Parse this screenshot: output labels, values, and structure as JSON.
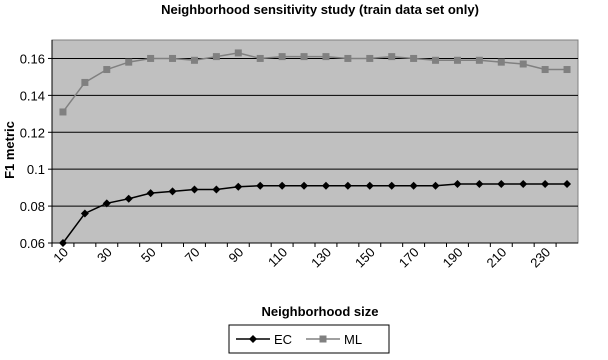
{
  "chart_data": {
    "type": "line",
    "title": "Neighborhood sensitivity study (train data set only)",
    "x_label": "Neighborhood size",
    "y_label": "F1 metric",
    "categories": [
      "10",
      null,
      "30",
      null,
      "50",
      null,
      "70",
      null,
      "90",
      null,
      "110",
      null,
      "130",
      null,
      "150",
      null,
      "170",
      null,
      "190",
      null,
      "210",
      null,
      "230",
      null
    ],
    "series": [
      {
        "name": "EC",
        "color": "#000000",
        "marker": "diamond",
        "values": [
          0.06,
          0.076,
          0.0815,
          0.084,
          0.087,
          0.088,
          0.089,
          0.089,
          0.0905,
          0.091,
          0.091,
          0.091,
          0.091,
          0.091,
          0.091,
          0.091,
          0.091,
          0.091,
          0.092,
          0.092,
          0.092,
          0.092,
          0.092,
          0.092
        ]
      },
      {
        "name": "ML",
        "color": "#808080",
        "marker": "square",
        "values": [
          0.131,
          0.147,
          0.154,
          0.158,
          0.16,
          0.16,
          0.159,
          0.161,
          0.163,
          0.16,
          0.161,
          0.161,
          0.161,
          0.16,
          0.16,
          0.161,
          0.16,
          0.159,
          0.159,
          0.159,
          0.158,
          0.157,
          0.154,
          0.154
        ]
      }
    ],
    "ylim": [
      0.06,
      0.17
    ],
    "yticks": [
      0.06,
      0.08,
      0.1,
      0.12,
      0.14,
      0.16
    ],
    "grid": true,
    "legend": "bottom"
  }
}
